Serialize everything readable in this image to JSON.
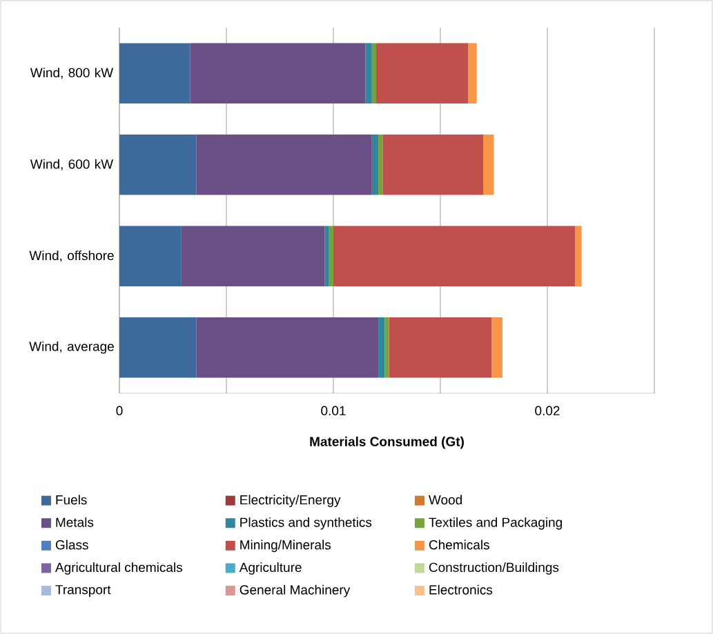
{
  "chart_data": {
    "type": "bar",
    "orientation": "horizontal",
    "stacked": true,
    "xlabel": "Materials Consumed (Gt)",
    "categories": [
      "Wind, 800 kW",
      "Wind, 600 kW",
      "Wind, offshore",
      "Wind, average"
    ],
    "xlim": [
      0,
      0.025
    ],
    "xticks": [
      0,
      {
        "value": 0.005,
        "label": null
      },
      0.01,
      {
        "value": 0.015,
        "label": null
      },
      0.02,
      {
        "value": 0.025,
        "label": null
      }
    ],
    "grid": "x",
    "legend": "bottom",
    "series": [
      {
        "name": "Fuels",
        "color": "#3f6a9c",
        "values": [
          0.0033,
          0.0036,
          0.0029,
          0.0036
        ]
      },
      {
        "name": "Electricity/Energy",
        "color": "#9b3a38",
        "values": [
          0,
          0,
          0,
          0
        ]
      },
      {
        "name": "Wood",
        "color": "#d07a2f",
        "values": [
          0,
          0,
          0,
          0
        ]
      },
      {
        "name": "Metals",
        "color": "#6a4f87",
        "values": [
          0.0082,
          0.0082,
          0.0067,
          0.0085
        ]
      },
      {
        "name": "Plastics and synthetics",
        "color": "#31869b",
        "values": [
          0.0003,
          0.0003,
          0.0002,
          0.0003
        ]
      },
      {
        "name": "Textiles and Packaging",
        "color": "#77a33c",
        "values": [
          0.0002,
          0.0002,
          0.0002,
          0.0002
        ]
      },
      {
        "name": "Glass",
        "color": "#4f81bd",
        "values": [
          0,
          0,
          0,
          0
        ]
      },
      {
        "name": "Mining/Minerals",
        "color": "#c0504d",
        "values": [
          0.0043,
          0.0047,
          0.0113,
          0.0048
        ]
      },
      {
        "name": "Chemicals",
        "color": "#f79646",
        "values": [
          0.0004,
          0.0005,
          0.0003,
          0.0005
        ]
      },
      {
        "name": "Agricultural chemicals",
        "color": "#8064a2",
        "values": [
          0,
          0,
          0,
          0
        ]
      },
      {
        "name": "Agriculture",
        "color": "#4bacc6",
        "values": [
          0,
          0,
          0,
          0
        ]
      },
      {
        "name": "Construction/Buildings",
        "color": "#c3d69b",
        "values": [
          0,
          0,
          0,
          0
        ]
      },
      {
        "name": "Transport",
        "color": "#a7b9dd",
        "values": [
          0,
          0,
          0,
          0
        ]
      },
      {
        "name": "General Machinery",
        "color": "#d99694",
        "values": [
          0,
          0,
          0,
          0
        ]
      },
      {
        "name": "Electronics",
        "color": "#fac090",
        "values": [
          0,
          0,
          0,
          0
        ]
      }
    ]
  }
}
